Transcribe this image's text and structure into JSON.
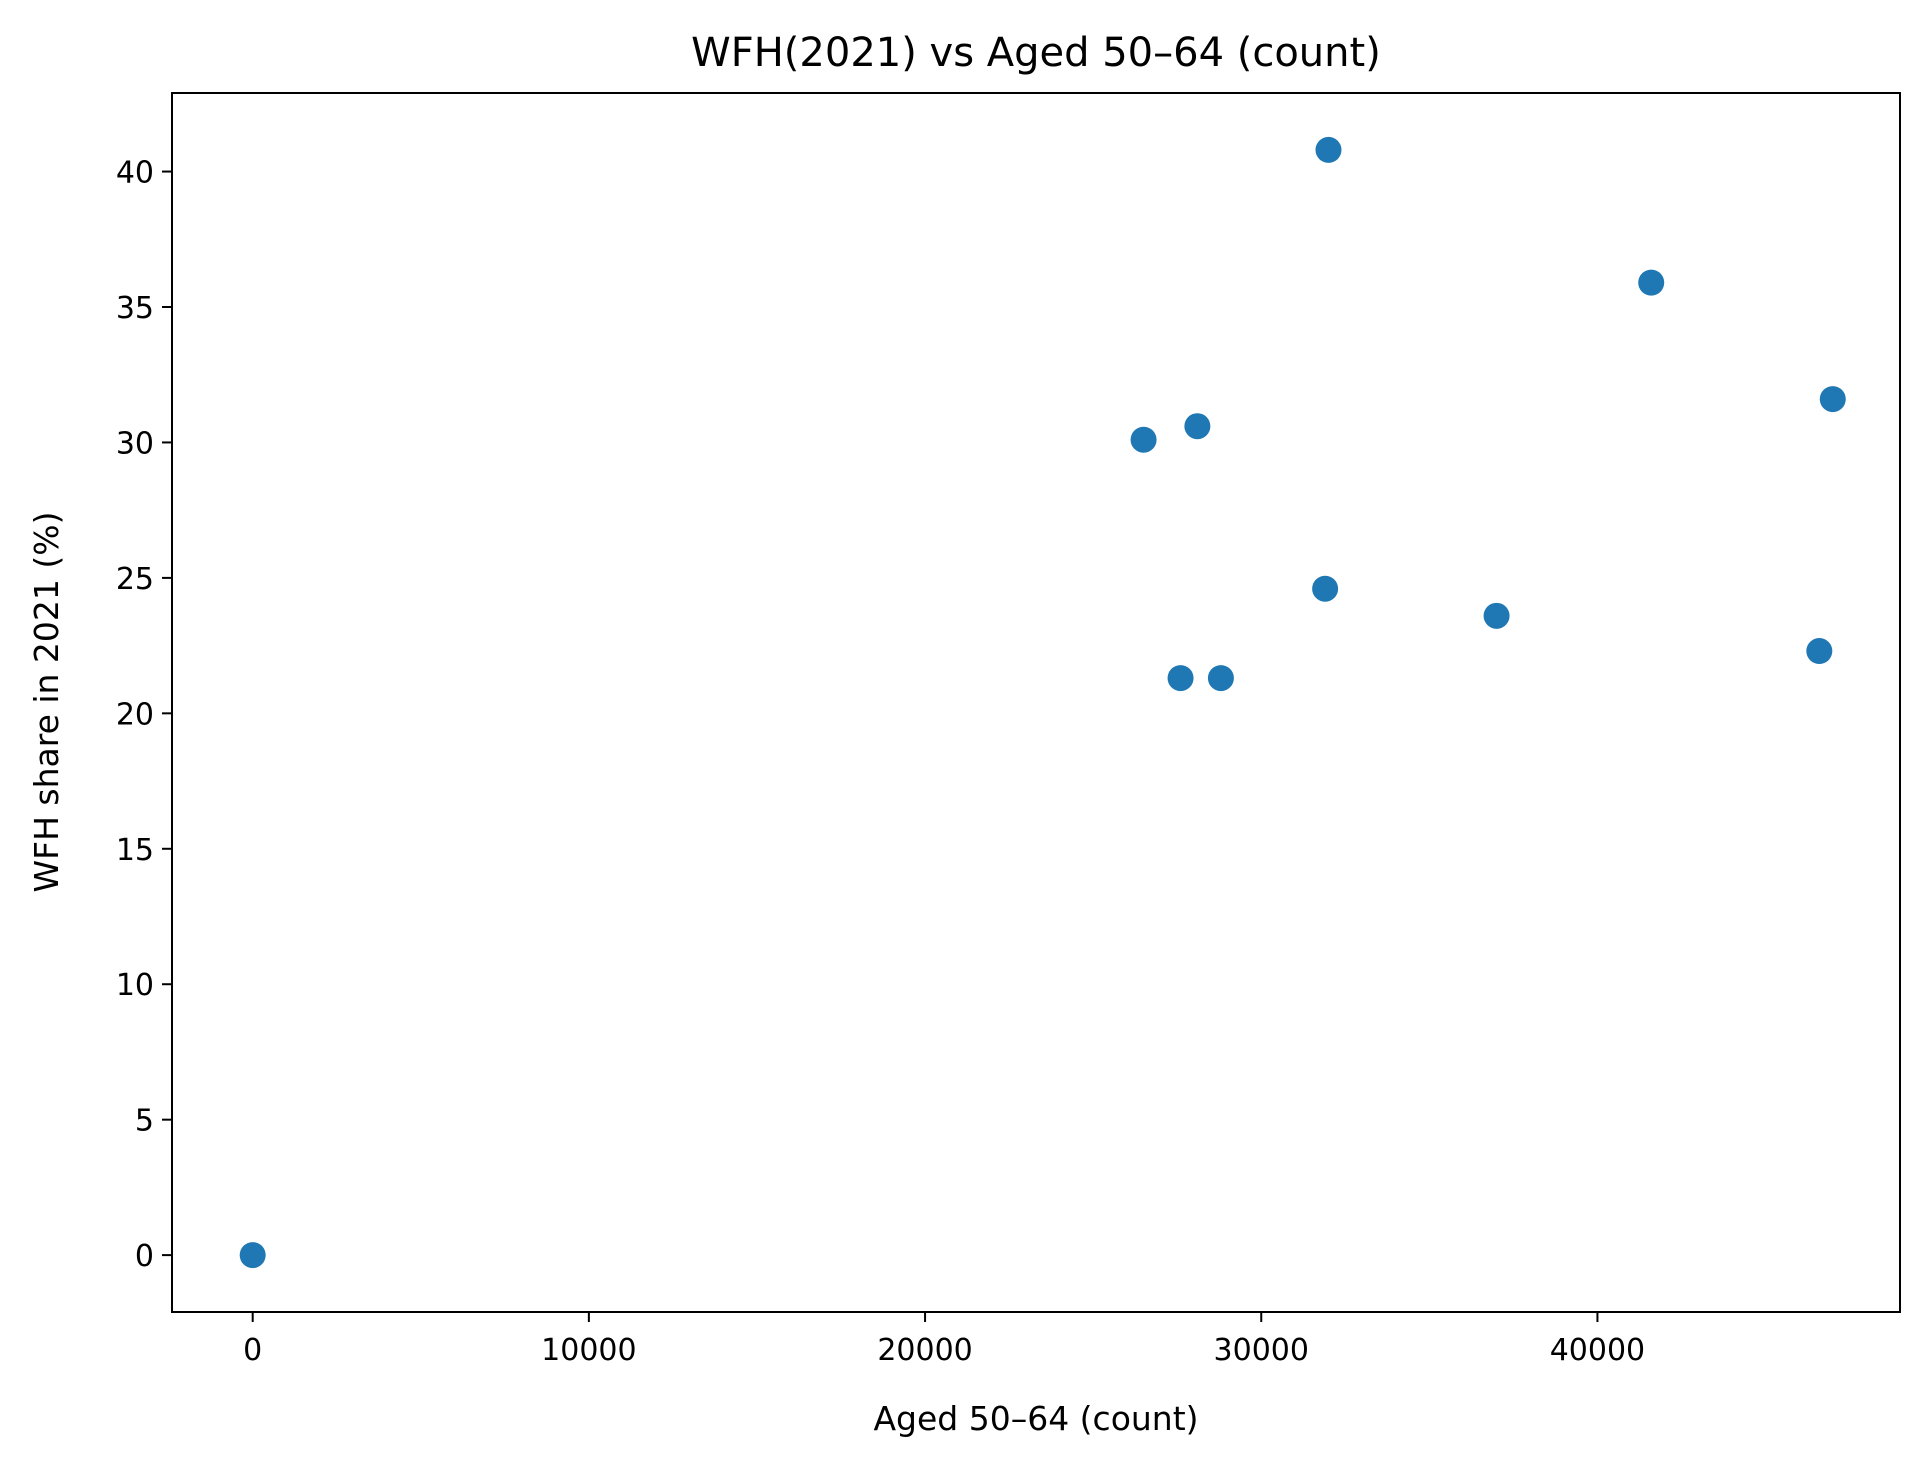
{
  "chart_data": {
    "type": "scatter",
    "title": "WFH(2021) vs Aged 50–64 (count)",
    "xlabel": "Aged 50–64 (count)",
    "ylabel": "WFH share in 2021 (%)",
    "xlim": [
      -2400,
      49000
    ],
    "ylim": [
      -2.1,
      42.9
    ],
    "xticks": [
      0,
      10000,
      20000,
      30000,
      40000
    ],
    "yticks": [
      0,
      5,
      10,
      15,
      20,
      25,
      30,
      35,
      40
    ],
    "grid": false,
    "legend": "none",
    "color": "#1f77b4",
    "points": [
      {
        "x": 0,
        "y": 0.0
      },
      {
        "x": 26500,
        "y": 30.1
      },
      {
        "x": 27600,
        "y": 21.3
      },
      {
        "x": 28100,
        "y": 30.6
      },
      {
        "x": 28800,
        "y": 21.3
      },
      {
        "x": 31900,
        "y": 24.6
      },
      {
        "x": 32000,
        "y": 40.8
      },
      {
        "x": 37000,
        "y": 23.6
      },
      {
        "x": 41600,
        "y": 35.9
      },
      {
        "x": 46600,
        "y": 22.3
      },
      {
        "x": 47000,
        "y": 31.6
      }
    ]
  }
}
